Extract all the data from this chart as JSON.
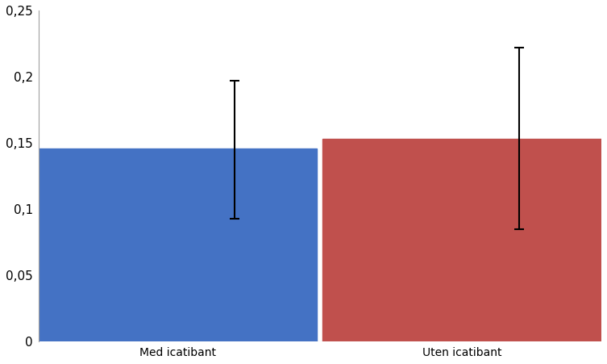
{
  "categories": [
    "Med icatibant",
    "Uten icatibant"
  ],
  "values": [
    0.146,
    0.153
  ],
  "errors_upper": [
    0.051,
    0.069
  ],
  "errors_lower": [
    0.053,
    0.068
  ],
  "bar_colors": [
    "#4472C4",
    "#C0504D"
  ],
  "ylim": [
    0,
    0.25
  ],
  "yticks": [
    0,
    0.05,
    0.1,
    0.15,
    0.2,
    0.25
  ],
  "ytick_labels": [
    "0",
    "0,05",
    "0,1",
    "0,15",
    "0,2",
    "0,25"
  ],
  "background_color": "#ffffff",
  "bar_width": 0.98,
  "error_capsize": 4,
  "error_linewidth": 1.5,
  "label_fontsize": 10,
  "tick_fontsize": 11,
  "spine_color": "#a0a0a0"
}
